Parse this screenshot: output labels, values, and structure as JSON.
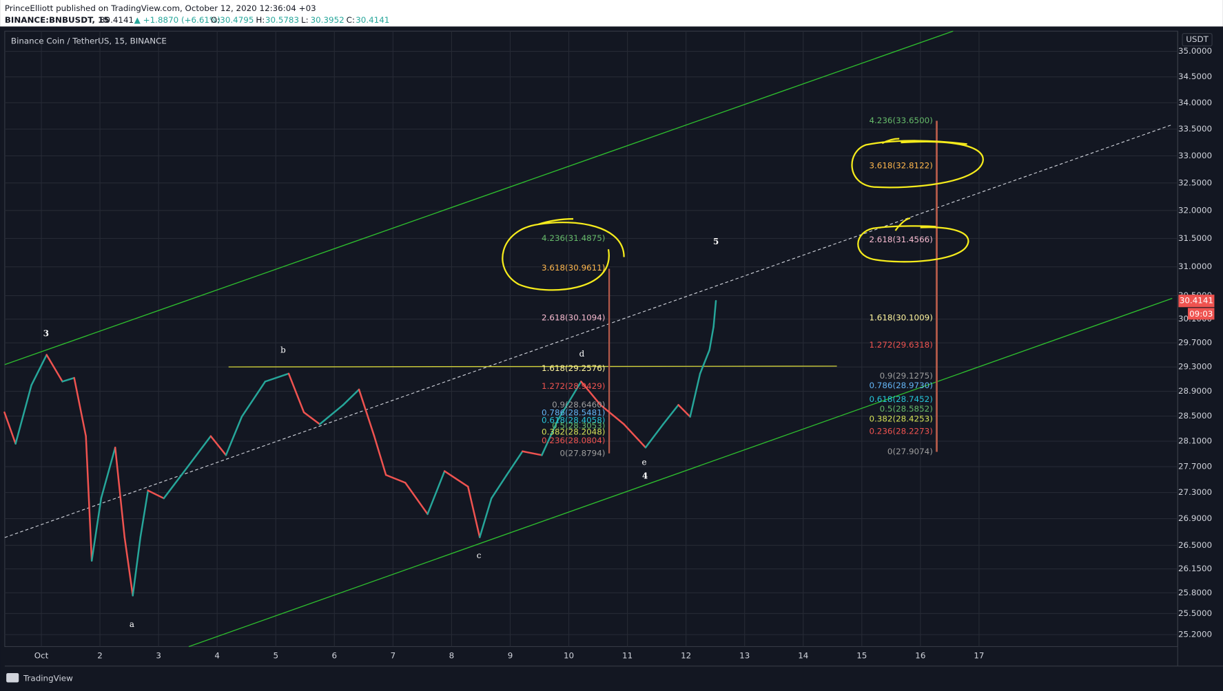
{
  "header": {
    "publisher": "PrinceElliott published on TradingView.com, October 12, 2020 12:36:04 +03",
    "symbol": "BINANCE:BNBUSDT, 15",
    "last": "30.4141",
    "change": "▲ +1.8870 (+6.61%)",
    "ohlc": [
      {
        "label": "O:",
        "value": "30.4795"
      },
      {
        "label": "H:",
        "value": "30.5783"
      },
      {
        "label": "L:",
        "value": "30.3952"
      },
      {
        "label": "C:",
        "value": "30.4141"
      }
    ]
  },
  "chart_data": {
    "type": "line",
    "title": "Binance Coin / TetherUS, 15, BINANCE",
    "x": [
      0.37,
      0.56,
      0.83,
      1.09,
      1.36,
      1.56,
      1.76,
      1.86,
      2.02,
      2.26,
      2.42,
      2.56,
      2.69,
      2.82,
      3.09,
      3.49,
      3.89,
      4.15,
      4.42,
      4.82,
      5.22,
      5.48,
      5.75,
      6.15,
      6.42,
      6.68,
      6.88,
      7.21,
      7.59,
      7.88,
      8.28,
      8.48,
      8.68,
      8.94,
      9.21,
      9.54,
      9.81,
      10.21,
      10.54,
      10.94,
      11.31,
      11.61,
      11.87,
      12.07,
      12.24,
      12.4,
      12.47,
      12.51
    ],
    "values": [
      28.56,
      28.06,
      29.0,
      29.5,
      29.06,
      29.12,
      28.18,
      26.27,
      27.21,
      28.0,
      26.62,
      25.76,
      26.62,
      27.33,
      27.21,
      27.69,
      28.18,
      27.88,
      28.49,
      29.06,
      29.19,
      28.56,
      28.37,
      28.68,
      28.93,
      28.18,
      27.57,
      27.45,
      26.97,
      27.63,
      27.39,
      26.62,
      27.21,
      27.57,
      27.94,
      27.88,
      28.43,
      29.06,
      28.68,
      28.37,
      28.0,
      28.37,
      28.68,
      28.49,
      29.19,
      29.58,
      29.97,
      30.41
    ],
    "up_color": "#26a69a",
    "down_color": "#ef5350",
    "log_scale": true,
    "grid": true,
    "xlim": [
      0.375,
      20.39
    ],
    "xticks": [
      {
        "value": 1,
        "label": "Oct"
      },
      2,
      3,
      4,
      5,
      6,
      7,
      8,
      9,
      10,
      11,
      12,
      13,
      14,
      15,
      16,
      17
    ],
    "ylim": [
      25.03,
      35.4
    ],
    "yticks": [
      {
        "value": 25.2,
        "label": "25.2000"
      },
      {
        "value": 25.5,
        "label": "25.5000"
      },
      {
        "value": 25.8,
        "label": "25.8000"
      },
      {
        "value": 26.15,
        "label": "26.1500"
      },
      {
        "value": 26.5,
        "label": "26.5000"
      },
      {
        "value": 26.9,
        "label": "26.9000"
      },
      {
        "value": 27.3,
        "label": "27.3000"
      },
      {
        "value": 27.7,
        "label": "27.7000"
      },
      {
        "value": 28.1,
        "label": "28.1000"
      },
      {
        "value": 28.5,
        "label": "28.5000"
      },
      {
        "value": 28.9,
        "label": "28.9000"
      },
      {
        "value": 29.3,
        "label": "29.3000"
      },
      {
        "value": 29.7,
        "label": "29.7000"
      },
      {
        "value": 30.1,
        "label": "30.1000"
      },
      {
        "value": 30.5,
        "label": "30.5000"
      },
      {
        "value": 31,
        "label": "31.0000"
      },
      {
        "value": 31.5,
        "label": "31.5000"
      },
      {
        "value": 32,
        "label": "32.0000"
      },
      {
        "value": 32.5,
        "label": "32.5000"
      },
      {
        "value": 33,
        "label": "33.0000"
      },
      {
        "value": 33.5,
        "label": "33.5000"
      },
      {
        "value": 34,
        "label": "34.0000"
      },
      {
        "value": 34.5,
        "label": "34.5000"
      },
      {
        "value": 35,
        "label": "35.0000"
      }
    ]
  },
  "price_axis": {
    "currency": "USDT",
    "last_price": "30.4141",
    "countdown": "09:03"
  },
  "waves": [
    "3",
    "a",
    "b",
    "c",
    "d",
    "e",
    "4",
    "5"
  ],
  "fib_left": [
    {
      "text": "4.236(31.4875)",
      "color": "#66bb6a"
    },
    {
      "text": "3.618(30.9611)",
      "color": "#ffb74d"
    },
    {
      "text": "2.618(30.1094)",
      "color": "#f8bbd0"
    },
    {
      "text": "1.618(29.2576)",
      "color": "#fff59d"
    },
    {
      "text": "1.272(28.9429)",
      "color": "#ef5350"
    },
    {
      "text": "0.9(28.6460)",
      "color": "#9e9e9e"
    },
    {
      "text": "0.786(28.5481)",
      "color": "#64b5f6"
    },
    {
      "text": "0.618(28.4058)",
      "color": "#26c6da"
    },
    {
      "text": "0.5(28.3053)",
      "color": "#66bb6a"
    },
    {
      "text": "0.382(28.2048)",
      "color": "#d4e157"
    },
    {
      "text": "0.236(28.0804)",
      "color": "#ef5350"
    },
    {
      "text": "0(27.8794)",
      "color": "#9e9e9e"
    }
  ],
  "fib_right": [
    {
      "text": "4.236(33.6500)",
      "color": "#66bb6a"
    },
    {
      "text": "3.618(32.8122)",
      "color": "#ffb74d"
    },
    {
      "text": "2.618(31.4566)",
      "color": "#f8bbd0"
    },
    {
      "text": "1.618(30.1009)",
      "color": "#fff59d"
    },
    {
      "text": "1.272(29.6318)",
      "color": "#ef5350"
    },
    {
      "text": "0.9(29.1275)",
      "color": "#9e9e9e"
    },
    {
      "text": "0.786(28.9730)",
      "color": "#64b5f6"
    },
    {
      "text": "0.618(28.7452)",
      "color": "#26c6da"
    },
    {
      "text": "0.5(28.5852)",
      "color": "#66bb6a"
    },
    {
      "text": "0.382(28.4253)",
      "color": "#d4e157"
    },
    {
      "text": "0.236(28.2273)",
      "color": "#ef5350"
    },
    {
      "text": "0(27.9074)",
      "color": "#9e9e9e"
    }
  ],
  "footer": "TradingView"
}
